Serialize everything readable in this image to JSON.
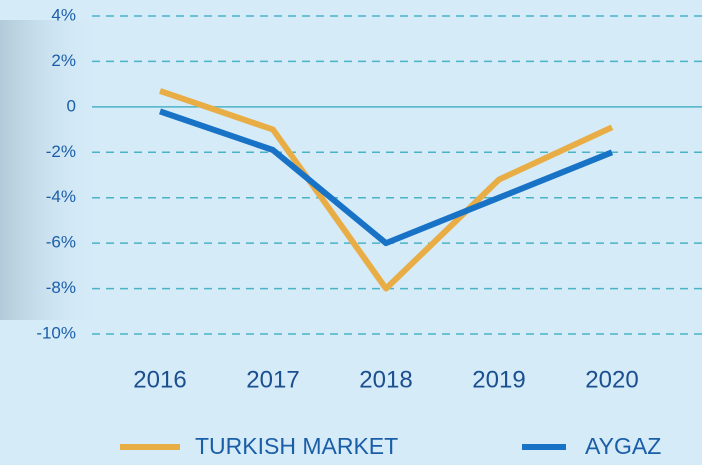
{
  "chart_data": {
    "type": "line",
    "categories": [
      "2016",
      "2017",
      "2018",
      "2019",
      "2020"
    ],
    "series": [
      {
        "name": "TURKISH MARKET",
        "color": "#e9ad46",
        "values": [
          0.7,
          -1,
          -8,
          -3.2,
          -0.9
        ]
      },
      {
        "name": "AYGAZ",
        "color": "#1872c6",
        "values": [
          -0.2,
          -1.9,
          -6,
          -4,
          -2
        ]
      }
    ],
    "ylim": [
      -10,
      4
    ],
    "yticks": [
      {
        "value": -10,
        "label": "-10%"
      },
      {
        "value": -8,
        "label": "-8%"
      },
      {
        "value": -6,
        "label": "-6%"
      },
      {
        "value": -4,
        "label": "-4%"
      },
      {
        "value": -2,
        "label": "-2%"
      },
      0,
      {
        "value": 2,
        "label": "2%"
      },
      {
        "value": 4,
        "label": "4%"
      }
    ],
    "grid": true,
    "legend": "bottom"
  }
}
